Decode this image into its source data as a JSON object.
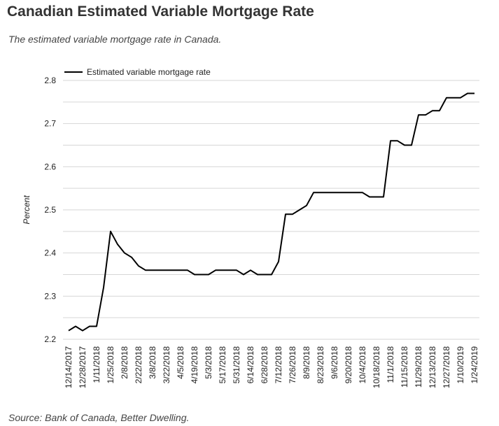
{
  "header": {
    "title": "Canadian Estimated Variable Mortgage Rate",
    "subtitle": "The estimated variable mortgage rate in Canada.",
    "source": "Source: Bank of Canada, Better Dwelling."
  },
  "chart_data": {
    "type": "line",
    "title": "Canadian Estimated Variable Mortgage Rate",
    "xlabel": "",
    "ylabel": "Percent",
    "ylim": [
      2.2,
      2.8
    ],
    "yticks": [
      "2.2",
      "2.3",
      "2.4",
      "2.5",
      "2.6",
      "2.7",
      "2.8"
    ],
    "grid": true,
    "legend": "top-left",
    "x": [
      "12/14/2017",
      "12/21/2017",
      "12/28/2017",
      "1/4/2018",
      "1/11/2018",
      "1/18/2018",
      "1/25/2018",
      "2/1/2018",
      "2/8/2018",
      "2/15/2018",
      "2/22/2018",
      "3/1/2018",
      "3/8/2018",
      "3/15/2018",
      "3/22/2018",
      "3/29/2018",
      "4/5/2018",
      "4/12/2018",
      "4/19/2018",
      "4/26/2018",
      "5/3/2018",
      "5/10/2018",
      "5/17/2018",
      "5/24/2018",
      "5/31/2018",
      "6/7/2018",
      "6/14/2018",
      "6/21/2018",
      "6/28/2018",
      "7/5/2018",
      "7/12/2018",
      "7/19/2018",
      "7/26/2018",
      "8/2/2018",
      "8/9/2018",
      "8/16/2018",
      "8/23/2018",
      "8/30/2018",
      "9/6/2018",
      "9/13/2018",
      "9/20/2018",
      "9/27/2018",
      "10/4/2018",
      "10/11/2018",
      "10/18/2018",
      "10/25/2018",
      "11/1/2018",
      "11/8/2018",
      "11/15/2018",
      "11/22/2018",
      "11/29/2018",
      "12/6/2018",
      "12/13/2018",
      "12/20/2018",
      "12/27/2018",
      "1/3/2019",
      "1/10/2019",
      "1/17/2019",
      "1/24/2019"
    ],
    "xtick_labels": [
      "12/14/2017",
      "12/28/2017",
      "1/11/2018",
      "1/25/2018",
      "2/8/2018",
      "2/22/2018",
      "3/8/2018",
      "3/22/2018",
      "4/5/2018",
      "4/19/2018",
      "5/3/2018",
      "5/17/2018",
      "5/31/2018",
      "6/14/2018",
      "6/28/2018",
      "7/12/2018",
      "7/26/2018",
      "8/9/2018",
      "8/23/2018",
      "9/6/2018",
      "9/20/2018",
      "10/4/2018",
      "10/18/2018",
      "11/1/2018",
      "11/15/2018",
      "11/29/2018",
      "12/13/2018",
      "12/27/2018",
      "1/10/2019",
      "1/24/2019"
    ],
    "series": [
      {
        "name": "Estimated variable mortgage rate",
        "color": "#000000",
        "values": [
          2.22,
          2.23,
          2.22,
          2.23,
          2.23,
          2.32,
          2.45,
          2.42,
          2.4,
          2.39,
          2.37,
          2.36,
          2.36,
          2.36,
          2.36,
          2.36,
          2.36,
          2.36,
          2.35,
          2.35,
          2.35,
          2.36,
          2.36,
          2.36,
          2.36,
          2.35,
          2.36,
          2.35,
          2.35,
          2.35,
          2.38,
          2.49,
          2.49,
          2.5,
          2.51,
          2.54,
          2.54,
          2.54,
          2.54,
          2.54,
          2.54,
          2.54,
          2.54,
          2.53,
          2.53,
          2.53,
          2.66,
          2.66,
          2.65,
          2.65,
          2.72,
          2.72,
          2.73,
          2.73,
          2.76,
          2.76,
          2.76,
          2.77,
          2.77
        ]
      }
    ]
  }
}
